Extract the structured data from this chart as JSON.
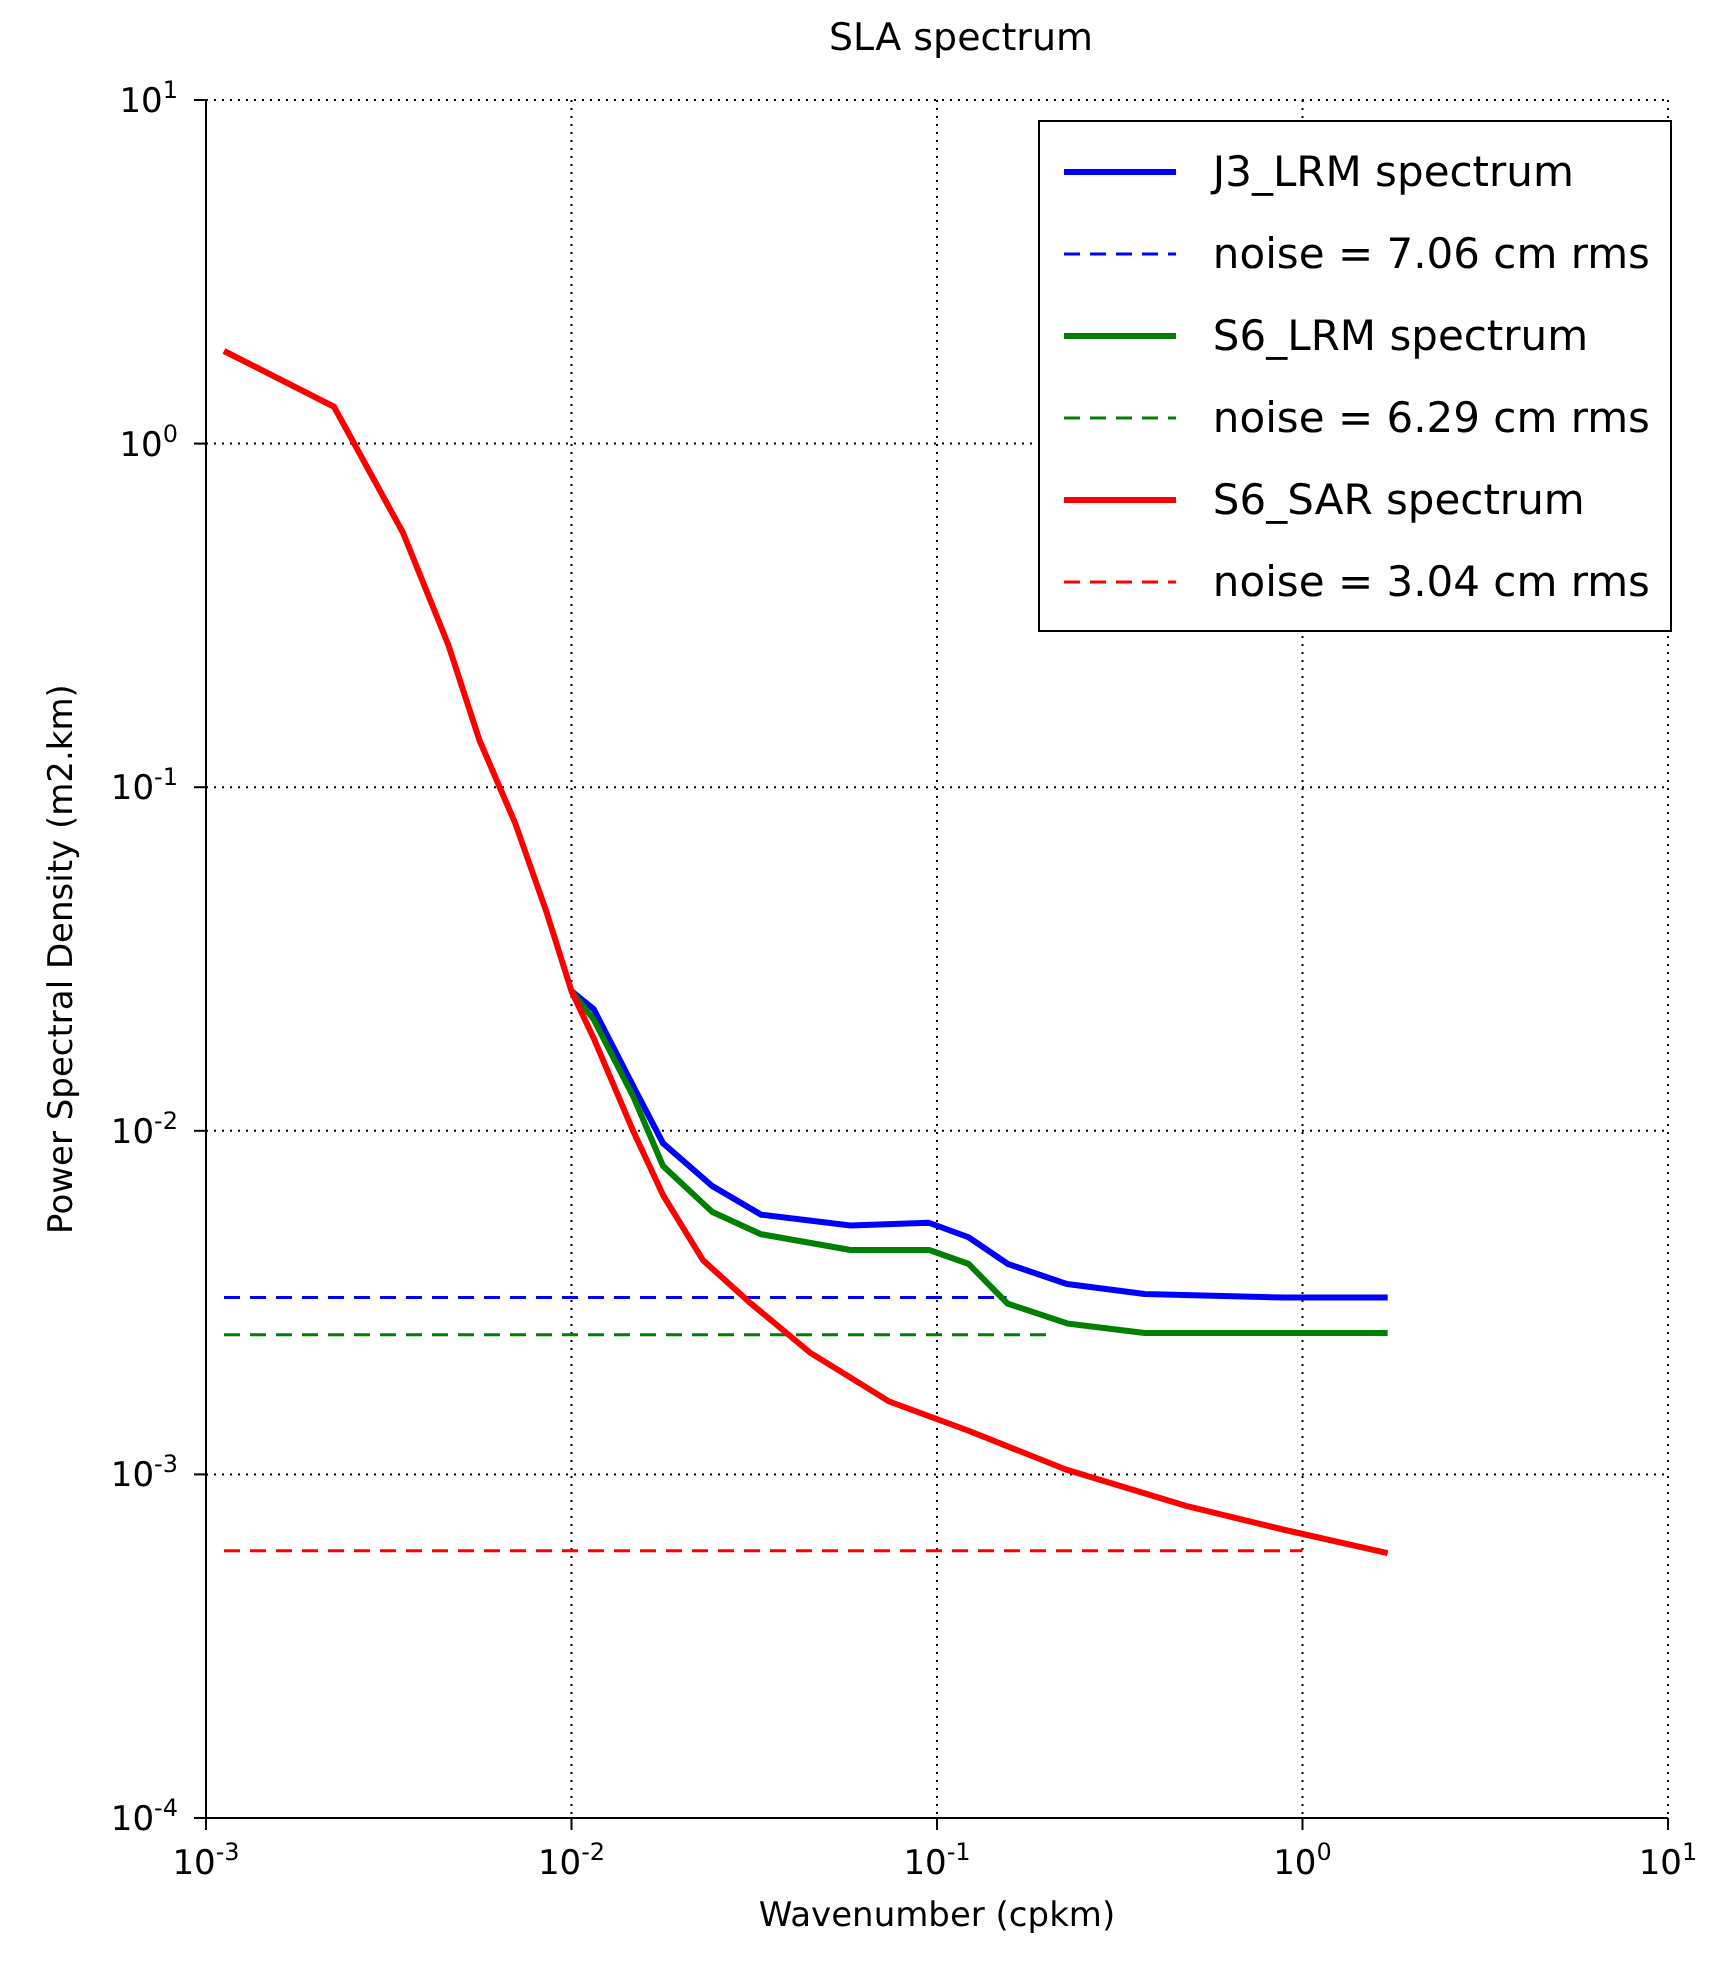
{
  "chart_data": {
    "type": "line",
    "title": "SLA spectrum",
    "xlabel": "Wavenumber (cpkm)",
    "ylabel": "Power Spectral Density (m2.km)",
    "log": "xy",
    "grid": true,
    "legend": "top right",
    "marker": "none",
    "xlim": [
      0.001,
      10
    ],
    "ylim": [
      0.0001,
      10
    ],
    "xticks": [
      {
        "value": 0.001,
        "label": "10$^{-3}$"
      },
      {
        "value": 0.01,
        "label": "10$^{-2}$"
      },
      {
        "value": 0.1,
        "label": "10$^{-1}$"
      },
      {
        "value": 1,
        "label": "10$^{0}$"
      },
      {
        "value": 10,
        "label": "10$^{1}$"
      }
    ],
    "yticks": [
      {
        "value": 0.0001,
        "label": "10$^{-4}$"
      },
      {
        "value": 0.001,
        "label": "10$^{-3}$"
      },
      {
        "value": 0.01,
        "label": "10$^{-2}$"
      },
      {
        "value": 0.1,
        "label": "10$^{-1}$"
      },
      {
        "value": 1,
        "label": "10$^{0}$"
      },
      {
        "value": 10,
        "label": "10$^{1}$"
      }
    ],
    "series": [
      {
        "name": "J3_LRM spectrum",
        "color": "#0000ff",
        "line_style": "solid",
        "x": [
          0.01,
          0.0115,
          0.0148,
          0.0178,
          0.0243,
          0.033,
          0.058,
          0.095,
          0.122,
          0.156,
          0.227,
          0.37,
          0.89,
          1.71
        ],
        "values": [
          0.0255,
          0.0226,
          0.0134,
          0.0092,
          0.0069,
          0.0057,
          0.0053,
          0.0054,
          0.0049,
          0.0041,
          0.00358,
          0.00335,
          0.00327,
          0.00327
        ]
      },
      {
        "name": "noise = 7.06 cm rms",
        "color": "#0000ff",
        "line_style": "dashed",
        "x": [
          0.00112,
          0.155
        ],
        "values": [
          0.00327,
          0.00327
        ]
      },
      {
        "name": "S6_LRM spectrum",
        "color": "#008000",
        "line_style": "solid",
        "x": [
          0.01,
          0.0115,
          0.0148,
          0.0178,
          0.0243,
          0.033,
          0.058,
          0.095,
          0.122,
          0.156,
          0.227,
          0.37,
          0.89,
          1.71
        ],
        "values": [
          0.0255,
          0.0211,
          0.0125,
          0.0079,
          0.0058,
          0.005,
          0.0045,
          0.0045,
          0.0041,
          0.00314,
          0.00275,
          0.00258,
          0.00258,
          0.00258
        ]
      },
      {
        "name": "noise = 6.29 cm rms",
        "color": "#008000",
        "line_style": "dashed",
        "x": [
          0.00112,
          0.21
        ],
        "values": [
          0.00255,
          0.00255
        ]
      },
      {
        "name": "S6_SAR spectrum",
        "color": "#ff0000",
        "line_style": "solid",
        "x": [
          0.00112,
          0.00224,
          0.00346,
          0.0046,
          0.0056,
          0.007,
          0.0085,
          0.01,
          0.0115,
          0.0148,
          0.0178,
          0.0229,
          0.031,
          0.045,
          0.074,
          0.122,
          0.227,
          0.48,
          0.89,
          1.71
        ],
        "values": [
          1.86,
          1.28,
          0.55,
          0.26,
          0.137,
          0.079,
          0.044,
          0.0255,
          0.0186,
          0.0099,
          0.0065,
          0.0042,
          0.00314,
          0.00226,
          0.00163,
          0.00134,
          0.00103,
          0.00081,
          0.00069,
          0.00059
        ]
      },
      {
        "name": "noise = 3.04 cm rms",
        "color": "#ff0000",
        "line_style": "dashed",
        "x": [
          0.00112,
          1.0
        ],
        "values": [
          0.0006,
          0.0006
        ]
      }
    ]
  }
}
